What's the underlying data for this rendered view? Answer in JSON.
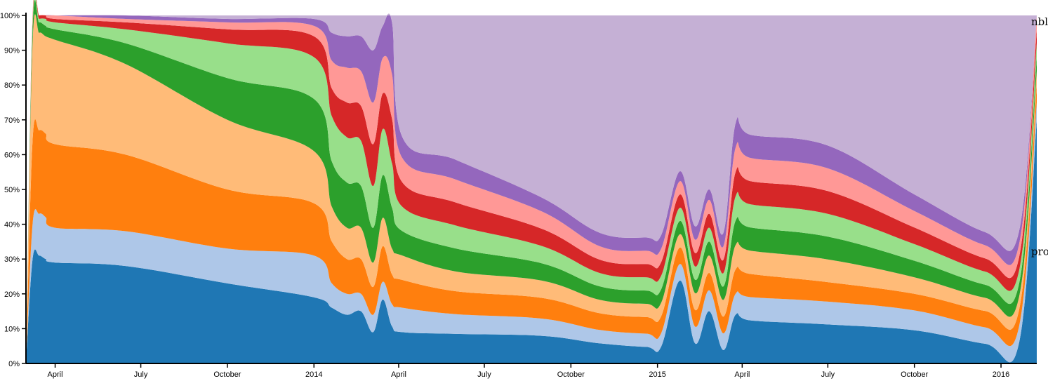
{
  "chart_data": {
    "type": "area",
    "stacked": true,
    "normalized": true,
    "xlabel": "",
    "ylabel": "",
    "ylim": [
      0,
      1
    ],
    "y_tick_labels": [
      "0%",
      "10%",
      "20%",
      "30%",
      "40%",
      "50%",
      "60%",
      "70%",
      "80%",
      "90%",
      "100%"
    ],
    "x_tick_labels": [
      "April",
      "July",
      "October",
      "2014",
      "April",
      "July",
      "October",
      "2015",
      "April",
      "July",
      "October",
      "2016"
    ],
    "x_range": [
      "2013-03-01",
      "2016-02-08"
    ],
    "x_ticks": [
      "2013-04-01",
      "2013-07-01",
      "2013-10-01",
      "2014-01-01",
      "2014-04-01",
      "2014-07-01",
      "2014-10-01",
      "2015-01-01",
      "2015-04-01",
      "2015-07-01",
      "2015-10-01",
      "2016-01-01"
    ],
    "visible_series_labels": [
      {
        "text": "nbl",
        "at_y": 1.0
      },
      {
        "text": "pro",
        "at_y": 0.34
      }
    ],
    "colors": [
      "#1f77b4",
      "#aec7e8",
      "#ff7f0e",
      "#ffbb78",
      "#2ca02c",
      "#98df8a",
      "#d62728",
      "#ff9896",
      "#9467bd",
      "#c5b0d5"
    ],
    "x": [
      "2013-03-01",
      "2013-03-08",
      "2013-03-15",
      "2013-03-22",
      "2013-04-01",
      "2013-06-15",
      "2013-10-01",
      "2014-01-01",
      "2014-01-20",
      "2014-02-05",
      "2014-02-20",
      "2014-03-05",
      "2014-03-15",
      "2014-03-25",
      "2014-04-05",
      "2014-06-01",
      "2014-09-01",
      "2014-11-01",
      "2014-12-20",
      "2015-01-05",
      "2015-01-25",
      "2015-02-10",
      "2015-02-25",
      "2015-03-12",
      "2015-03-25",
      "2015-04-10",
      "2015-07-01",
      "2015-10-01",
      "2015-12-15",
      "2016-01-20",
      "2016-02-08"
    ],
    "layers": [
      {
        "values": [
          0.0,
          0.3,
          0.31,
          0.3,
          0.29,
          0.28,
          0.23,
          0.19,
          0.16,
          0.14,
          0.15,
          0.09,
          0.18,
          0.1,
          0.09,
          0.09,
          0.08,
          0.06,
          0.05,
          0.05,
          0.25,
          0.06,
          0.15,
          0.04,
          0.14,
          0.13,
          0.12,
          0.1,
          0.06,
          0.06,
          0.7
        ]
      },
      {
        "values": [
          0.0,
          0.1,
          0.12,
          0.12,
          0.1,
          0.1,
          0.1,
          0.12,
          0.07,
          0.06,
          0.05,
          0.05,
          0.05,
          0.06,
          0.07,
          0.06,
          0.05,
          0.04,
          0.04,
          0.04,
          0.05,
          0.05,
          0.06,
          0.05,
          0.06,
          0.07,
          0.07,
          0.06,
          0.05,
          0.05,
          0.05
        ]
      },
      {
        "values": [
          0.0,
          0.24,
          0.24,
          0.24,
          0.24,
          0.22,
          0.17,
          0.15,
          0.12,
          0.1,
          0.1,
          0.08,
          0.1,
          0.08,
          0.08,
          0.07,
          0.06,
          0.05,
          0.05,
          0.05,
          0.05,
          0.05,
          0.05,
          0.05,
          0.07,
          0.07,
          0.06,
          0.05,
          0.05,
          0.05,
          0.05
        ]
      },
      {
        "values": [
          0.0,
          0.28,
          0.28,
          0.28,
          0.3,
          0.26,
          0.2,
          0.15,
          0.1,
          0.09,
          0.09,
          0.07,
          0.08,
          0.07,
          0.07,
          0.06,
          0.05,
          0.04,
          0.04,
          0.04,
          0.04,
          0.05,
          0.05,
          0.05,
          0.07,
          0.07,
          0.07,
          0.05,
          0.04,
          0.04,
          0.04
        ]
      },
      {
        "values": [
          0.0,
          0.04,
          0.03,
          0.03,
          0.03,
          0.06,
          0.12,
          0.15,
          0.13,
          0.13,
          0.12,
          0.1,
          0.12,
          0.11,
          0.07,
          0.07,
          0.05,
          0.04,
          0.04,
          0.04,
          0.04,
          0.04,
          0.04,
          0.04,
          0.07,
          0.07,
          0.07,
          0.05,
          0.04,
          0.04,
          0.04
        ]
      },
      {
        "values": [
          0.0,
          0.02,
          0.01,
          0.02,
          0.02,
          0.04,
          0.1,
          0.12,
          0.13,
          0.13,
          0.13,
          0.12,
          0.13,
          0.12,
          0.07,
          0.07,
          0.05,
          0.04,
          0.04,
          0.04,
          0.04,
          0.04,
          0.04,
          0.04,
          0.07,
          0.07,
          0.07,
          0.05,
          0.04,
          0.04,
          0.04
        ]
      },
      {
        "values": [
          0.0,
          0.01,
          0.01,
          0.01,
          0.01,
          0.02,
          0.04,
          0.06,
          0.08,
          0.1,
          0.1,
          0.12,
          0.1,
          0.12,
          0.07,
          0.07,
          0.05,
          0.04,
          0.04,
          0.04,
          0.04,
          0.04,
          0.04,
          0.04,
          0.07,
          0.07,
          0.07,
          0.05,
          0.04,
          0.04,
          0.04
        ]
      },
      {
        "values": [
          0.0,
          0.01,
          0.0,
          0.0,
          0.01,
          0.01,
          0.02,
          0.03,
          0.08,
          0.1,
          0.1,
          0.12,
          0.1,
          0.12,
          0.07,
          0.07,
          0.05,
          0.04,
          0.04,
          0.04,
          0.04,
          0.04,
          0.04,
          0.04,
          0.07,
          0.07,
          0.07,
          0.05,
          0.04,
          0.04,
          0.04
        ]
      },
      {
        "values": [
          0.0,
          0.0,
          0.0,
          0.0,
          0.0,
          0.01,
          0.01,
          0.02,
          0.08,
          0.09,
          0.1,
          0.15,
          0.09,
          0.14,
          0.06,
          0.06,
          0.04,
          0.04,
          0.04,
          0.04,
          0.03,
          0.04,
          0.03,
          0.04,
          0.07,
          0.07,
          0.07,
          0.05,
          0.04,
          0.04,
          0.0
        ]
      },
      {
        "values": [
          0.0,
          0.0,
          0.0,
          0.0,
          0.0,
          0.0,
          0.01,
          0.01,
          0.05,
          0.06,
          0.06,
          0.1,
          0.03,
          0.02,
          0.35,
          0.44,
          0.53,
          0.65,
          0.67,
          0.65,
          0.47,
          0.63,
          0.5,
          0.65,
          0.31,
          0.36,
          0.4,
          0.54,
          0.66,
          0.66,
          0.0
        ]
      }
    ]
  }
}
